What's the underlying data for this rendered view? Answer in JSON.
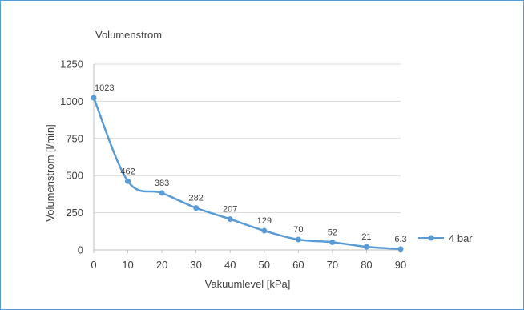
{
  "chart_data": {
    "type": "line",
    "title": "Volumenstrom",
    "xlabel": "Vakuumlevel [kPa]",
    "ylabel": "Volumenstrom [l/min]",
    "x": [
      0,
      10,
      20,
      30,
      40,
      50,
      60,
      70,
      80,
      90
    ],
    "xticks": [
      "0",
      "10",
      "20",
      "30",
      "40",
      "50",
      "60",
      "70",
      "80",
      "90"
    ],
    "yticks": [
      "0",
      "250",
      "500",
      "750",
      "1000",
      "1250"
    ],
    "xlim": [
      0,
      90
    ],
    "ylim": [
      0,
      1250
    ],
    "grid": "horizontal",
    "legend_position": "right",
    "series": [
      {
        "name": "4 bar",
        "color": "#5b9bd5",
        "values": [
          1023,
          462,
          383,
          282,
          207,
          129,
          70,
          52,
          21,
          6.3
        ],
        "labels": [
          "1023",
          "462",
          "383",
          "282",
          "207",
          "129",
          "70",
          "52",
          "21",
          "6.3"
        ]
      }
    ]
  }
}
